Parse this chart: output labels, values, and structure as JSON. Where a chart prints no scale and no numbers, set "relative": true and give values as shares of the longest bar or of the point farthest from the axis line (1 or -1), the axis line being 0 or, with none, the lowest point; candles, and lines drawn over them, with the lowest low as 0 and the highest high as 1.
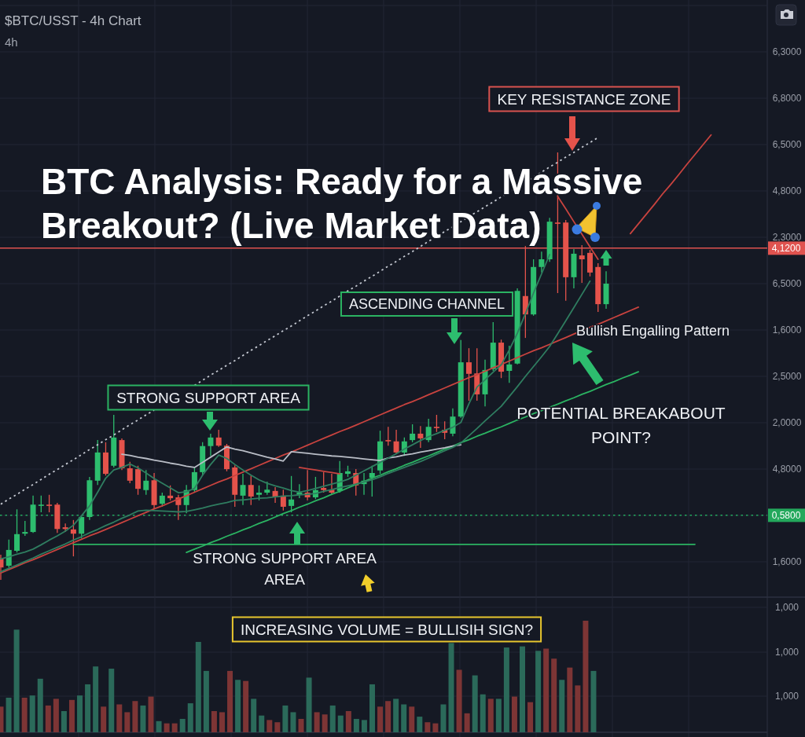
{
  "chart_data": [
    {
      "type": "candlestick",
      "title": "BTC Analysis: Ready for a Massive Breakout? (Live Market Data)",
      "subtitle": "$BTC/USST - 4h Chart",
      "relative": true,
      "grid": true,
      "categories": [
        null,
        null,
        null,
        null,
        null,
        null,
        null,
        null,
        null,
        null,
        null,
        null,
        null,
        null,
        null,
        null,
        null,
        null,
        null,
        null,
        null,
        null,
        null,
        null,
        null,
        null,
        null,
        null,
        null,
        null,
        null,
        null,
        null,
        null,
        null,
        null,
        null,
        null,
        null,
        null,
        null,
        null,
        null,
        null,
        null,
        null,
        null,
        null,
        null,
        null,
        null,
        null,
        null,
        null,
        null,
        null,
        null,
        null,
        null,
        null,
        null,
        null,
        null,
        null,
        null,
        null,
        null,
        null,
        null,
        null,
        null,
        null,
        null,
        null,
        null,
        null,
        null,
        null,
        null,
        null,
        null,
        null,
        null,
        null,
        null,
        null,
        null,
        null,
        null,
        null,
        null,
        null,
        null,
        null
      ],
      "series": [
        {
          "ohlc": [
            [
              0.051,
              0.059,
              0,
              0.029
            ],
            [
              0.033,
              0.094,
              0.029,
              0.07
            ],
            [
              0.068,
              0.165,
              0.064,
              0.107
            ],
            [
              0.108,
              0.138,
              0.103,
              0.112
            ],
            [
              0.112,
              0.197,
              0.11,
              0.176
            ],
            [
              0.173,
              0.197,
              0.158,
              0.176
            ],
            [
              0.176,
              0.199,
              0.158,
              0.173
            ],
            [
              0.176,
              0.18,
              0.11,
              0.119
            ],
            [
              0.123,
              0.132,
              0.112,
              0.119
            ],
            [
              0.118,
              0.14,
              0.055,
              0.108
            ],
            [
              0.108,
              0.149,
              0.097,
              0.147
            ],
            [
              0.147,
              0.241,
              0.14,
              0.233
            ],
            [
              0.232,
              0.327,
              0.222,
              0.298
            ],
            [
              0.298,
              0.322,
              0.244,
              0.248
            ],
            [
              0.267,
              0.386,
              0.263,
              0.333
            ],
            [
              0.327,
              0.331,
              0.257,
              0.261
            ],
            [
              0.261,
              0.276,
              0.226,
              0.232
            ],
            [
              0.259,
              0.267,
              0.199,
              0.213
            ],
            [
              0.21,
              0.257,
              0.199,
              0.232
            ],
            [
              0.233,
              0.25,
              0.167,
              0.175
            ],
            [
              0.178,
              0.204,
              0.171,
              0.197
            ],
            [
              0.197,
              0.221,
              0.186,
              0.191
            ],
            [
              0.193,
              0.199,
              0.14,
              0.175
            ],
            [
              0.175,
              0.222,
              0.156,
              0.21
            ],
            [
              0.21,
              0.263,
              0.206,
              0.252
            ],
            [
              0.252,
              0.322,
              0.244,
              0.313
            ],
            [
              0.313,
              0.342,
              0.29,
              0.333
            ],
            [
              0.333,
              0.351,
              0.311,
              0.314
            ],
            [
              0.314,
              0.318,
              0.254,
              0.259
            ],
            [
              0.263,
              0.268,
              0.171,
              0.199
            ],
            [
              0.197,
              0.248,
              0.175,
              0.222
            ],
            [
              0.222,
              0.244,
              0.175,
              0.195
            ],
            [
              0.199,
              0.221,
              0.186,
              0.204
            ],
            [
              0.204,
              0.23,
              0.199,
              0.211
            ],
            [
              0.208,
              0.217,
              0.18,
              0.193
            ],
            [
              0.197,
              0.211,
              0.162,
              0.171
            ],
            [
              0.173,
              0.243,
              0.158,
              0.188
            ],
            [
              0.199,
              0.224,
              0.191,
              0.204
            ],
            [
              0.204,
              0.257,
              0.186,
              0.193
            ],
            [
              0.193,
              0.241,
              0.189,
              0.21
            ],
            [
              0.215,
              0.252,
              0.204,
              0.21
            ],
            [
              0.211,
              0.248,
              0.199,
              0.204
            ],
            [
              0.208,
              0.278,
              0.204,
              0.25
            ],
            [
              0.248,
              0.267,
              0.241,
              0.254
            ],
            [
              0.25,
              0.259,
              0.197,
              0.221
            ],
            [
              0.224,
              0.25,
              0.199,
              0.232
            ],
            [
              0.239,
              0.267,
              0.195,
              0.25
            ],
            [
              0.256,
              0.349,
              0.248,
              0.324
            ],
            [
              0.327,
              0.358,
              0.314,
              0.324
            ],
            [
              0.324,
              0.351,
              0.296,
              0.298
            ],
            [
              0.298,
              0.333,
              0.29,
              0.324
            ],
            [
              0.327,
              0.364,
              0.322,
              0.342
            ],
            [
              0.342,
              0.36,
              0.309,
              0.331
            ],
            [
              0.327,
              0.377,
              0.322,
              0.358
            ],
            [
              0.358,
              0.386,
              0.346,
              0.355
            ],
            [
              0.351,
              0.371,
              0.329,
              0.344
            ],
            [
              0.342,
              0.401,
              0.336,
              0.382
            ],
            [
              0.382,
              0.561,
              0.379,
              0.509
            ],
            [
              0.509,
              0.542,
              0.419,
              0.482
            ],
            [
              0.483,
              0.542,
              0.419,
              0.434
            ],
            [
              0.434,
              0.515,
              0.406,
              0.491
            ],
            [
              0.493,
              0.603,
              0.489,
              0.555
            ],
            [
              0.555,
              0.562,
              0.472,
              0.487
            ],
            [
              0.489,
              0.548,
              0.461,
              0.504
            ],
            [
              0.506,
              0.682,
              0.504,
              0.676
            ],
            [
              0.664,
              0.781,
              0.566,
              0.621
            ],
            [
              0.621,
              0.75,
              0.618,
              0.732
            ],
            [
              0.732,
              0.768,
              0.719,
              0.75
            ],
            [
              0.75,
              0.847,
              0.744,
              0.838
            ],
            [
              0.836,
              1,
              0.671,
              0.833
            ],
            [
              0.836,
              0.842,
              0.653,
              0.708
            ],
            [
              0.708,
              0.774,
              0.682,
              0.763
            ],
            [
              0.759,
              0.783,
              0.695,
              0.75
            ],
            [
              0.765,
              0.772,
              0.71,
              0.719
            ],
            [
              0.732,
              0.741,
              0.627,
              0.645
            ],
            [
              0.645,
              0.722,
              0.634,
              0.693
            ],
            null,
            null,
            null,
            null,
            null,
            null,
            null,
            null,
            null,
            null,
            null,
            null,
            null,
            null,
            null,
            null,
            null,
            null
          ],
          "colors": [
            "#e5534b",
            "#2dbd6e",
            "#2dbd6e",
            "#2dbd6e",
            "#2dbd6e",
            "#2dbd6e",
            "#e5534b",
            "#e5534b",
            "#e5534b",
            "#e5534b",
            "#2dbd6e",
            "#2dbd6e",
            "#2dbd6e",
            "#e5534b",
            "#2dbd6e",
            "#e5534b",
            "#e5534b",
            "#e5534b",
            "#2dbd6e",
            "#e5534b",
            "#2dbd6e",
            "#e5534b",
            "#e5534b",
            "#2dbd6e",
            "#2dbd6e",
            "#2dbd6e",
            "#2dbd6e",
            "#e5534b",
            "#e5534b",
            "#e5534b",
            "#2dbd6e",
            "#e5534b",
            "#2dbd6e",
            "#2dbd6e",
            "#e5534b",
            "#e5534b",
            "#2dbd6e",
            "#2dbd6e",
            "#e5534b",
            "#2dbd6e",
            "#e5534b",
            "#e5534b",
            "#2dbd6e",
            "#2dbd6e",
            "#e5534b",
            "#2dbd6e",
            "#2dbd6e",
            "#2dbd6e",
            "#e5534b",
            "#e5534b",
            "#2dbd6e",
            "#2dbd6e",
            "#e5534b",
            "#2dbd6e",
            "#e5534b",
            "#e5534b",
            "#2dbd6e",
            "#2dbd6e",
            "#e5534b",
            "#e5534b",
            "#2dbd6e",
            "#2dbd6e",
            "#e5534b",
            "#2dbd6e",
            "#2dbd6e",
            "#e5534b",
            "#2dbd6e",
            "#2dbd6e",
            "#2dbd6e",
            "#e5534b",
            "#e5534b",
            "#2dbd6e",
            "#e5534b",
            "#e5534b",
            "#e5534b",
            "#2dbd6e",
            null,
            null,
            null,
            null,
            null,
            null,
            null,
            null,
            null,
            null,
            null,
            null,
            null,
            null,
            null,
            null,
            null,
            null
          ]
        },
        {
          "type": "line",
          "color": "#c5c9d2",
          "line_style": "dotted",
          "values": [
            0.177,
            0.189,
            0.2,
            0.212,
            0.223,
            0.235,
            0.247,
            0.258,
            0.27,
            0.281,
            0.293,
            0.305,
            0.316,
            0.328,
            0.339,
            0.351,
            0.363,
            0.374,
            0.386,
            0.397,
            null,
            null,
            null,
            null,
            0.455,
            0.467,
            0.479,
            0.49,
            0.502,
            0.513,
            0.525,
            0.537,
            0.548,
            0.56,
            0.571,
            0.583,
            0.594,
            0.606,
            0.618,
            0.629,
            0.641,
            0.652,
            0.664,
            0.676,
            0.687,
            0.699,
            0.71,
            0.722,
            0.734,
            0.745,
            0.757,
            0.768,
            0.78,
            0.792,
            0.803,
            0.815,
            0.826,
            0.838,
            0.85,
            0.861,
            0.873,
            0.884,
            0.896,
            0.908,
            0.919,
            0.931,
            0.942,
            0.954,
            0.966,
            0.977,
            0.989,
            1.0,
            1.012,
            1.023,
            1.035,
            null,
            null,
            null,
            null,
            null,
            null,
            null,
            null,
            null,
            null,
            null,
            null,
            null,
            null,
            null,
            null,
            null,
            null,
            null
          ]
        },
        {
          "type": "line",
          "color": "#c8433f",
          "line_style": "solid",
          "values": [
            0.016,
            0.024,
            0.032,
            0.04,
            0.047,
            0.055,
            0.063,
            0.071,
            0.079,
            0.087,
            0.095,
            0.103,
            0.11,
            0.118,
            0.126,
            0.134,
            0.142,
            0.15,
            0.158,
            0.166,
            0.173,
            0.181,
            0.189,
            0.197,
            0.205,
            0.213,
            0.221,
            0.229,
            0.236,
            0.244,
            0.252,
            0.26,
            0.268,
            0.276,
            0.284,
            0.292,
            0.299,
            0.307,
            0.315,
            0.323,
            0.331,
            0.339,
            0.347,
            0.354,
            0.362,
            0.37,
            0.378,
            0.386,
            0.394,
            0.402,
            0.41,
            0.417,
            0.425,
            0.433,
            0.441,
            0.449,
            0.457,
            0.465,
            0.473,
            0.48,
            0.488,
            0.496,
            0.504,
            0.512,
            0.52,
            0.528,
            0.536,
            0.543,
            0.551,
            0.559,
            0.567,
            0.575,
            0.583,
            0.591,
            0.598,
            0.606,
            0.614,
            0.622,
            0.63,
            0.638,
            null,
            null,
            null,
            null,
            null,
            null,
            null,
            null,
            null,
            null,
            null,
            null,
            null,
            null
          ]
        },
        {
          "type": "line",
          "color": "#2bb362",
          "line_style": "solid",
          "values": [
            null,
            null,
            null,
            null,
            null,
            null,
            null,
            null,
            null,
            null,
            null,
            null,
            null,
            null,
            null,
            null,
            null,
            null,
            null,
            null,
            null,
            null,
            null,
            0.064,
            0.072,
            0.079,
            0.087,
            0.094,
            0.102,
            0.109,
            0.117,
            0.124,
            0.132,
            0.139,
            0.147,
            0.155,
            0.162,
            0.17,
            0.177,
            0.185,
            0.192,
            0.2,
            0.207,
            0.215,
            0.223,
            0.23,
            0.238,
            0.245,
            0.253,
            0.26,
            0.268,
            0.275,
            0.283,
            0.29,
            0.298,
            0.306,
            0.313,
            0.321,
            0.328,
            0.336,
            0.343,
            0.351,
            0.358,
            0.366,
            0.374,
            0.381,
            0.389,
            0.396,
            0.404,
            0.411,
            0.419,
            0.426,
            0.434,
            0.441,
            0.449,
            0.457,
            0.464,
            0.472,
            0.479,
            0.487,
            null,
            null,
            null,
            null,
            null,
            null,
            null,
            null,
            null,
            null,
            null,
            null,
            null,
            null
          ]
        },
        {
          "type": "line",
          "color": "#c8433f",
          "line_style": "solid",
          "values": [
            null,
            null,
            null,
            null,
            null,
            null,
            null,
            null,
            null,
            null,
            null,
            null,
            null,
            null,
            null,
            null,
            null,
            null,
            null,
            null,
            null,
            null,
            null,
            null,
            null,
            null,
            null,
            null,
            null,
            null,
            null,
            null,
            null,
            null,
            null,
            null,
            null,
            null,
            null,
            null,
            null,
            null,
            null,
            null,
            null,
            null,
            null,
            null,
            null,
            null,
            null,
            null,
            null,
            null,
            null,
            null,
            null,
            null,
            null,
            null,
            null,
            null,
            null,
            null,
            null,
            null,
            null,
            null,
            null,
            null,
            null,
            null,
            null,
            null,
            null,
            null,
            null,
            null,
            0.81,
            0.833,
            0.856,
            0.879,
            0.903,
            0.925,
            0.948,
            0.972,
            0.995,
            1.018,
            1.041,
            null,
            null,
            null,
            null,
            null
          ]
        },
        {
          "type": "line",
          "color": "#2bb362",
          "line_style": "solid",
          "values": [
            null,
            null,
            null,
            null,
            null,
            null,
            null,
            null,
            null,
            0.083,
            0.083,
            0.083,
            0.083,
            0.083,
            0.083,
            0.083,
            0.083,
            0.083,
            0.083,
            0.083,
            0.083,
            0.083,
            0.083,
            0.083,
            0.083,
            0.083,
            0.083,
            0.083,
            0.083,
            0.083,
            0.083,
            0.083,
            0.083,
            0.083,
            0.083,
            0.083,
            0.083,
            0.083,
            0.083,
            0.083,
            0.083,
            0.083,
            0.083,
            0.083,
            0.083,
            0.083,
            0.083,
            0.083,
            0.083,
            0.083,
            0.083,
            0.083,
            0.083,
            0.083,
            0.083,
            0.083,
            0.083,
            0.083,
            0.083,
            0.083,
            0.083,
            0.083,
            0.083,
            0.083,
            0.083,
            0.083,
            0.083,
            0.083,
            0.083,
            0.083,
            0.083,
            0.083,
            0.083,
            0.083,
            0.083,
            0.083,
            0.083,
            0.083,
            0.083,
            0.083,
            0.083,
            0.083,
            0.083,
            0.083,
            0.083,
            0.083,
            0.083,
            null,
            null,
            null,
            null,
            null,
            null,
            null
          ]
        },
        {
          "type": "line",
          "color": "#b9bdc6",
          "line_style": "solid",
          "values": [
            null,
            null,
            null,
            null,
            null,
            null,
            null,
            null,
            null,
            null,
            null,
            null,
            null,
            null,
            null,
            0.294,
            0.291,
            0.287,
            0.284,
            0.28,
            0.277,
            0.273,
            0.27,
            0.266,
            0.263,
            0.275,
            0.287,
            0.299,
            0.311,
            0.306,
            0.302,
            0.297,
            0.292,
            0.287,
            0.283,
            0.278,
            0.3,
            0.298,
            0.296,
            0.294,
            0.292,
            0.29,
            0.289,
            0.287,
            0.285,
            0.283,
            0.281,
            0.279,
            0.285,
            0.288,
            0.292,
            0.295,
            0.299,
            0.302,
            0.306,
            0.309,
            0.313,
            0.316,
            null,
            null,
            null,
            null,
            null,
            null,
            null,
            null,
            null,
            null,
            null,
            null,
            null,
            null,
            null,
            null,
            null,
            null,
            null,
            null,
            null,
            null,
            null,
            null,
            null,
            null,
            null,
            null,
            null,
            null,
            null,
            null,
            null,
            null,
            null,
            null
          ]
        },
        {
          "type": "line",
          "color": "#c8433f",
          "line_style": "solid",
          "values": [
            null,
            null,
            null,
            null,
            null,
            null,
            null,
            null,
            null,
            null,
            null,
            null,
            null,
            null,
            null,
            null,
            null,
            null,
            null,
            null,
            null,
            null,
            null,
            null,
            null,
            null,
            null,
            null,
            null,
            null,
            null,
            null,
            null,
            null,
            null,
            null,
            null,
            0.263,
            0.26,
            0.257,
            0.254,
            0.251,
            0.248,
            null,
            null,
            null,
            null,
            null,
            null,
            null,
            null,
            null,
            null,
            null,
            null,
            null,
            null,
            null,
            null,
            null,
            null,
            null,
            null,
            null,
            null,
            null,
            null,
            null,
            null,
            null,
            null,
            null,
            null,
            null,
            null,
            null,
            null,
            null,
            null,
            null,
            null,
            null,
            null,
            null,
            null,
            null,
            null,
            null,
            null,
            null,
            null,
            null,
            null,
            null
          ]
        },
        {
          "type": "line",
          "color": "#c8433f",
          "line_style": "solid",
          "values": [
            null,
            null,
            null,
            null,
            null,
            null,
            null,
            null,
            null,
            null,
            null,
            null,
            null,
            null,
            null,
            null,
            null,
            null,
            null,
            null,
            null,
            null,
            null,
            null,
            null,
            null,
            null,
            null,
            null,
            null,
            null,
            null,
            null,
            null,
            null,
            null,
            null,
            null,
            null,
            null,
            null,
            null,
            null,
            null,
            null,
            null,
            null,
            null,
            null,
            null,
            null,
            null,
            null,
            null,
            null,
            null,
            null,
            null,
            null,
            null,
            null,
            null,
            null,
            null,
            null,
            null,
            null,
            null,
            null,
            0.897,
            0.868,
            0.838,
            0.809,
            0.779,
            0.75,
            null,
            null,
            null,
            null,
            null,
            null,
            null,
            null,
            null,
            null,
            null,
            null,
            null,
            null,
            null,
            null,
            null,
            null,
            null
          ]
        },
        {
          "type": "line",
          "color": "#2f7d60",
          "line_style": "solid",
          "values": [
            0.049,
            0.054,
            0.06,
            0.065,
            0.072,
            0.082,
            0.093,
            0.103,
            0.114,
            0.128,
            0.15,
            0.173,
            0.205,
            0.238,
            0.257,
            0.263,
            0.271,
            0.262,
            0.25,
            0.237,
            0.226,
            0.215,
            0.204,
            0.206,
            0.214,
            0.245,
            0.27,
            0.292,
            0.284,
            0.27,
            0.257,
            0.245,
            0.234,
            0.226,
            0.22,
            0.215,
            0.209,
            0.205,
            0.209,
            0.214,
            0.219,
            0.224,
            0.229,
            0.235,
            0.245,
            0.255,
            0.265,
            0.275,
            0.285,
            0.295,
            0.306,
            0.316,
            0.326,
            0.335,
            0.342,
            0.35,
            0.357,
            0.368,
            0.412,
            0.451,
            0.468,
            0.486,
            0.503,
            0.538,
            0.577,
            0.623,
            0.671,
            0.716,
            0.761,
            null,
            null,
            null,
            null,
            null,
            null,
            null,
            null,
            null,
            null,
            null,
            null,
            null,
            null,
            null,
            null,
            null,
            null,
            null,
            null,
            null,
            null,
            null,
            null,
            null
          ]
        },
        {
          "type": "line",
          "color": "#2f7d60",
          "line_style": "solid",
          "values": [
            0.019,
            0.027,
            0.035,
            0.043,
            0.051,
            0.06,
            0.068,
            0.076,
            0.084,
            0.093,
            0.101,
            0.11,
            0.118,
            0.127,
            0.135,
            0.144,
            0.152,
            0.161,
            0.163,
            0.162,
            0.161,
            0.16,
            0.159,
            0.16,
            0.164,
            0.168,
            0.173,
            0.177,
            0.181,
            0.186,
            0.187,
            0.189,
            0.191,
            0.192,
            0.194,
            0.196,
            0.197,
            0.199,
            0.2,
            0.202,
            0.207,
            0.211,
            0.216,
            0.22,
            0.224,
            0.229,
            0.234,
            0.241,
            0.249,
            0.256,
            0.263,
            0.27,
            0.277,
            0.285,
            0.294,
            0.302,
            0.31,
            0.32,
            0.337,
            0.354,
            0.372,
            0.389,
            0.406,
            0.429,
            0.452,
            0.476,
            0.499,
            0.522,
            0.546,
            0.576,
            0.606,
            0.637,
            0.668,
            0.699,
            null,
            null,
            null,
            null,
            null,
            null,
            null,
            null,
            null,
            null,
            null,
            null,
            null,
            null,
            null,
            null,
            null,
            null,
            null,
            null
          ]
        }
      ],
      "ref_lines": [
        {
          "axis": "y",
          "value": 0.776,
          "color": "#e0534f",
          "line_style": "solid"
        },
        {
          "axis": "y",
          "value": 0.151,
          "color": "#23a85c",
          "line_style": "dotted"
        }
      ],
      "annotations": [
        "4h",
        "KEY RESISTANCE ZONE",
        "ASCENDING CHANNEL",
        "STRONG SUPPORT AREA",
        "STRONG SUPPORT AREA\nAREA",
        "Bullish Engalling Pattern",
        "POTENTIAL BREAKABOUT\nPOINT?",
        "6,3000",
        "6,8000",
        "6,5000",
        "4,8000",
        "2,3000",
        "6,5000",
        "1,6000",
        "2,5000",
        "2,0000",
        "4,8000",
        "1,6000",
        "4,1200",
        "0,5800"
      ]
    },
    {
      "type": "bar",
      "relative": true,
      "grid": true,
      "categories": [
        null,
        null,
        null,
        null,
        null,
        null,
        null,
        null,
        null,
        null,
        null,
        null,
        null,
        null,
        null,
        null,
        null,
        null,
        null,
        null,
        null,
        null,
        null,
        null,
        null,
        null,
        null,
        null,
        null,
        null,
        null,
        null,
        null,
        null,
        null,
        null,
        null,
        null,
        null,
        null,
        null,
        null,
        null,
        null,
        null,
        null,
        null,
        null,
        null,
        null,
        null,
        null,
        null,
        null,
        null,
        null,
        null,
        null,
        null,
        null,
        null,
        null,
        null,
        null,
        null,
        null,
        null,
        null,
        null,
        null,
        null,
        null,
        null,
        null,
        null,
        null
      ],
      "values": [
        0.23,
        0.31,
        0.92,
        0.31,
        0.33,
        0.48,
        0.24,
        0.3,
        0.19,
        0.29,
        0.33,
        0.43,
        0.59,
        0.23,
        0.57,
        0.25,
        0.18,
        0.28,
        0.24,
        0.32,
        0.1,
        0.08,
        0.08,
        0.12,
        0.26,
        0.81,
        0.55,
        0.19,
        0.18,
        0.55,
        0.47,
        0.46,
        0.3,
        0.15,
        0.11,
        0.09,
        0.24,
        0.18,
        0.12,
        0.49,
        0.18,
        0.16,
        0.24,
        0.15,
        0.19,
        0.12,
        0.11,
        0.43,
        0.23,
        0.28,
        0.3,
        0.25,
        0.23,
        0.14,
        0.09,
        0.08,
        0.25,
        0.8,
        0.56,
        0.17,
        0.51,
        0.34,
        0.3,
        0.3,
        0.76,
        0.32,
        0.77,
        0.27,
        0.73,
        0.75,
        0.66,
        0.47,
        0.58,
        0.42,
        1,
        0.55
      ],
      "colors": [
        "#7d3535",
        "#2b6a5a",
        "#2b6a5a",
        "#7d3535",
        "#2b6a5a",
        "#2b6a5a",
        "#7d3535",
        "#7d3535",
        "#2b6a5a",
        "#7d3535",
        "#2b6a5a",
        "#2b6a5a",
        "#2b6a5a",
        "#7d3535",
        "#2b6a5a",
        "#7d3535",
        "#7d3535",
        "#7d3535",
        "#2b6a5a",
        "#7d3535",
        "#2b6a5a",
        "#7d3535",
        "#7d3535",
        "#2b6a5a",
        "#2b6a5a",
        "#2b6a5a",
        "#2b6a5a",
        "#7d3535",
        "#7d3535",
        "#7d3535",
        "#2b6a5a",
        "#7d3535",
        "#2b6a5a",
        "#2b6a5a",
        "#7d3535",
        "#7d3535",
        "#2b6a5a",
        "#2b6a5a",
        "#7d3535",
        "#2b6a5a",
        "#7d3535",
        "#7d3535",
        "#2b6a5a",
        "#2b6a5a",
        "#7d3535",
        "#2b6a5a",
        "#2b6a5a",
        "#2b6a5a",
        "#7d3535",
        "#7d3535",
        "#2b6a5a",
        "#2b6a5a",
        "#7d3535",
        "#2b6a5a",
        "#7d3535",
        "#7d3535",
        "#2b6a5a",
        "#2b6a5a",
        "#7d3535",
        "#7d3535",
        "#2b6a5a",
        "#2b6a5a",
        "#7d3535",
        "#2b6a5a",
        "#2b6a5a",
        "#7d3535",
        "#2b6a5a",
        "#7d3535",
        "#2b6a5a",
        "#7d3535",
        "#7d3535",
        "#2b6a5a",
        "#7d3535",
        "#7d3535",
        "#7d3535",
        "#2b6a5a"
      ],
      "annotations": [
        "INCREASING VOLUME = BULLISIH SIGN?",
        "1,000",
        "1,000",
        "1,000"
      ]
    }
  ]
}
